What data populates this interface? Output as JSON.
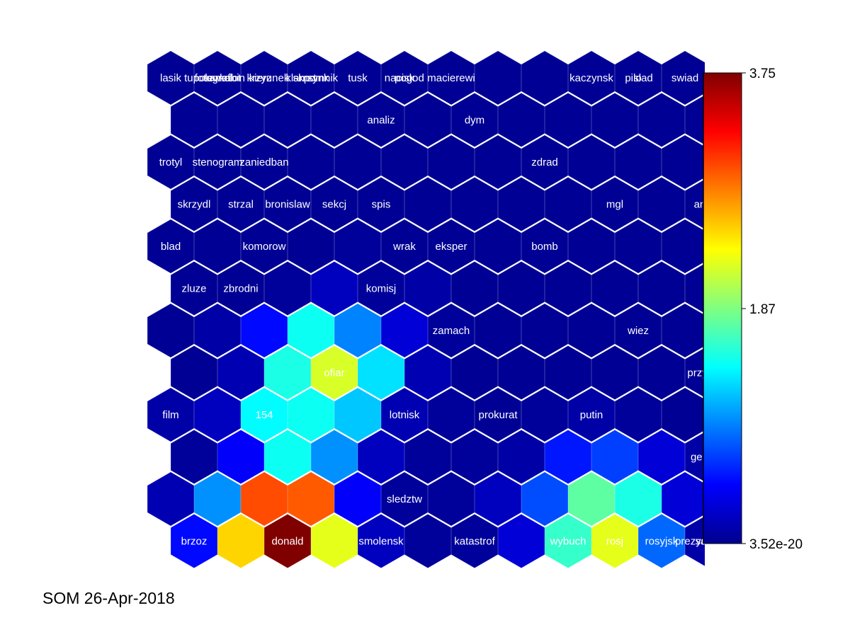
{
  "chart_data": {
    "type": "heatmap",
    "title": "",
    "grid": {
      "columns": 12,
      "rows": 12,
      "topology": "hexagonal",
      "unit_fill": "mean distance (U-matrix)"
    },
    "colormap": "jet",
    "colorbar": {
      "min": 3.52e-20,
      "max": 3.75,
      "tick_labels": [
        "3.75",
        "1.87",
        "3.52e-20"
      ],
      "tick_values": [
        3.75,
        1.87,
        3.52e-20
      ]
    },
    "values": [
      [
        0.02,
        0.02,
        0.02,
        0.02,
        0.02,
        0.02,
        0.02,
        0.02,
        0.02,
        0.02,
        0.02,
        0.02
      ],
      [
        0.02,
        0.02,
        0.02,
        0.02,
        0.02,
        0.02,
        0.02,
        0.02,
        0.02,
        0.02,
        0.02,
        0.02
      ],
      [
        0.02,
        0.02,
        0.02,
        0.02,
        0.02,
        0.02,
        0.02,
        0.02,
        0.02,
        0.02,
        0.02,
        0.02
      ],
      [
        0.02,
        0.02,
        0.02,
        0.02,
        0.02,
        0.02,
        0.02,
        0.02,
        0.02,
        0.02,
        0.02,
        0.02
      ],
      [
        0.02,
        0.02,
        0.02,
        0.02,
        0.05,
        0.02,
        0.02,
        0.02,
        0.02,
        0.02,
        0.02,
        0.02
      ],
      [
        0.02,
        0.02,
        0.05,
        0.2,
        0.05,
        0.1,
        0.02,
        0.02,
        0.02,
        0.02,
        0.02,
        0.02
      ],
      [
        0.02,
        0.1,
        0.5,
        1.45,
        0.95,
        0.3,
        0.05,
        0.02,
        0.02,
        0.02,
        0.02,
        0.02
      ],
      [
        0.02,
        0.15,
        1.5,
        2.2,
        1.3,
        0.15,
        0.02,
        0.02,
        0.02,
        0.02,
        0.02,
        0.02
      ],
      [
        0.1,
        0.2,
        1.4,
        1.45,
        1.2,
        0.15,
        0.05,
        0.02,
        0.05,
        0.1,
        0.05,
        0.02
      ],
      [
        0.05,
        0.45,
        1.45,
        1.0,
        0.2,
        0.05,
        0.05,
        0.1,
        0.55,
        0.7,
        0.3,
        0.1
      ],
      [
        0.15,
        1.0,
        3.0,
        2.95,
        0.45,
        0.05,
        0.05,
        0.2,
        0.75,
        1.75,
        1.5,
        0.3
      ],
      [
        0.5,
        2.5,
        3.75,
        2.25,
        0.2,
        0.05,
        0.05,
        0.3,
        1.6,
        2.25,
        0.85,
        0.1
      ]
    ],
    "labels": [
      {
        "text": "lasik",
        "row": 0,
        "col": 0
      },
      {
        "text": "tupolew",
        "row": 0,
        "col": 1
      },
      {
        "text": "fotograf",
        "row": 0,
        "col": 1
      },
      {
        "text": "samolot",
        "row": 0,
        "col": 1
      },
      {
        "text": "kabin",
        "row": 0,
        "col": 1
      },
      {
        "text": "krzyz",
        "row": 0,
        "col": 2
      },
      {
        "text": "kierunek",
        "row": 0,
        "col": 2
      },
      {
        "text": "klamst",
        "row": 0,
        "col": 3
      },
      {
        "text": "skrzynk",
        "row": 0,
        "col": 3
      },
      {
        "text": "pomnik",
        "row": 0,
        "col": 3
      },
      {
        "text": "tusk",
        "row": 0,
        "col": 4
      },
      {
        "text": "nacisk",
        "row": 0,
        "col": 5
      },
      {
        "text": "pogod",
        "row": 0,
        "col": 5
      },
      {
        "text": "macierewi",
        "row": 0,
        "col": 6
      },
      {
        "text": "kaczynsk",
        "row": 0,
        "col": 9
      },
      {
        "text": "pilo",
        "row": 0,
        "col": 10
      },
      {
        "text": "slad",
        "row": 0,
        "col": 10
      },
      {
        "text": "swiad",
        "row": 0,
        "col": 11
      },
      {
        "text": "analiz",
        "row": 1,
        "col": 4
      },
      {
        "text": "dym",
        "row": 1,
        "col": 6
      },
      {
        "text": "trotyl",
        "row": 2,
        "col": 0
      },
      {
        "text": "stenogram",
        "row": 2,
        "col": 1
      },
      {
        "text": "zaniedban",
        "row": 2,
        "col": 2
      },
      {
        "text": "zdrad",
        "row": 2,
        "col": 8
      },
      {
        "text": "skrzydl",
        "row": 3,
        "col": 0
      },
      {
        "text": "strzal",
        "row": 3,
        "col": 1
      },
      {
        "text": "bronislaw",
        "row": 3,
        "col": 2
      },
      {
        "text": "sekcj",
        "row": 3,
        "col": 3
      },
      {
        "text": "spis",
        "row": 3,
        "col": 4
      },
      {
        "text": "mgl",
        "row": 3,
        "col": 9
      },
      {
        "text": "antoni",
        "row": 3,
        "col": 11
      },
      {
        "text": "blad",
        "row": 4,
        "col": 0
      },
      {
        "text": "komorow",
        "row": 4,
        "col": 2
      },
      {
        "text": "wrak",
        "row": 4,
        "col": 5
      },
      {
        "text": "eksper",
        "row": 4,
        "col": 6
      },
      {
        "text": "bomb",
        "row": 4,
        "col": 8
      },
      {
        "text": "zluze",
        "row": 5,
        "col": 0
      },
      {
        "text": "zbrodni",
        "row": 5,
        "col": 1
      },
      {
        "text": "komisj",
        "row": 5,
        "col": 4
      },
      {
        "text": "zamach",
        "row": 6,
        "col": 6
      },
      {
        "text": "wiez",
        "row": 6,
        "col": 10
      },
      {
        "text": "ofiar",
        "row": 7,
        "col": 3
      },
      {
        "text": "przyczyn",
        "row": 7,
        "col": 11
      },
      {
        "text": "film",
        "row": 8,
        "col": 0
      },
      {
        "text": "154",
        "row": 8,
        "col": 2
      },
      {
        "text": "lotnisk",
        "row": 8,
        "col": 5
      },
      {
        "text": "prokurat",
        "row": 8,
        "col": 7
      },
      {
        "text": "putin",
        "row": 8,
        "col": 9
      },
      {
        "text": "general",
        "row": 9,
        "col": 11
      },
      {
        "text": "sledztw",
        "row": 10,
        "col": 5
      },
      {
        "text": "brzoz",
        "row": 11,
        "col": 0
      },
      {
        "text": "donald",
        "row": 11,
        "col": 2
      },
      {
        "text": "smolensk",
        "row": 11,
        "col": 4
      },
      {
        "text": "katastrof",
        "row": 11,
        "col": 6
      },
      {
        "text": "wybuch",
        "row": 11,
        "col": 8
      },
      {
        "text": "rosj",
        "row": 11,
        "col": 9
      },
      {
        "text": "rosyjsk",
        "row": 11,
        "col": 10
      },
      {
        "text": "prezydent",
        "row": 11,
        "col": 11
      },
      {
        "text": "same",
        "row": 11,
        "col": 11
      },
      {
        "text": "ld",
        "row": 11,
        "col": 11
      }
    ]
  },
  "caption": "SOM 26-Apr-2018"
}
